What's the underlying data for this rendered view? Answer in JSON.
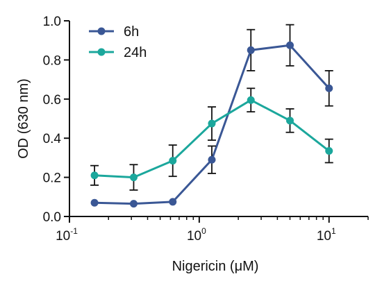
{
  "chart_data": {
    "type": "line",
    "title": "",
    "xlabel": "Nigericin (μM)",
    "ylabel": "OD (630 nm)",
    "x_scale": "log",
    "xlim": [
      0.1,
      20
    ],
    "ylim": [
      0,
      1.0
    ],
    "x": [
      0.156,
      0.3125,
      0.625,
      1.25,
      2.5,
      5,
      10
    ],
    "x_ticks": [
      {
        "value": 0.1,
        "base": "10",
        "exp": "-1"
      },
      {
        "value": 1,
        "base": "10",
        "exp": "0"
      },
      {
        "value": 10,
        "base": "10",
        "exp": "1"
      }
    ],
    "y_ticks": [
      "0.0",
      "0.2",
      "0.4",
      "0.6",
      "0.8",
      "1.0"
    ],
    "y_tick_values": [
      0,
      0.2,
      0.4,
      0.6,
      0.8,
      1.0
    ],
    "legend_position": "top-left",
    "grid": false,
    "series": [
      {
        "name": "6h",
        "color": "#3a5795",
        "values": [
          0.07,
          0.065,
          0.075,
          0.29,
          0.85,
          0.875,
          0.655
        ],
        "errors": [
          0,
          0,
          0,
          0.07,
          0.105,
          0.105,
          0.09
        ]
      },
      {
        "name": "24h",
        "color": "#1ba79c",
        "values": [
          0.21,
          0.2,
          0.285,
          0.475,
          0.595,
          0.49,
          0.335
        ],
        "errors": [
          0.05,
          0.065,
          0.08,
          0.085,
          0.06,
          0.06,
          0.06
        ]
      }
    ]
  }
}
